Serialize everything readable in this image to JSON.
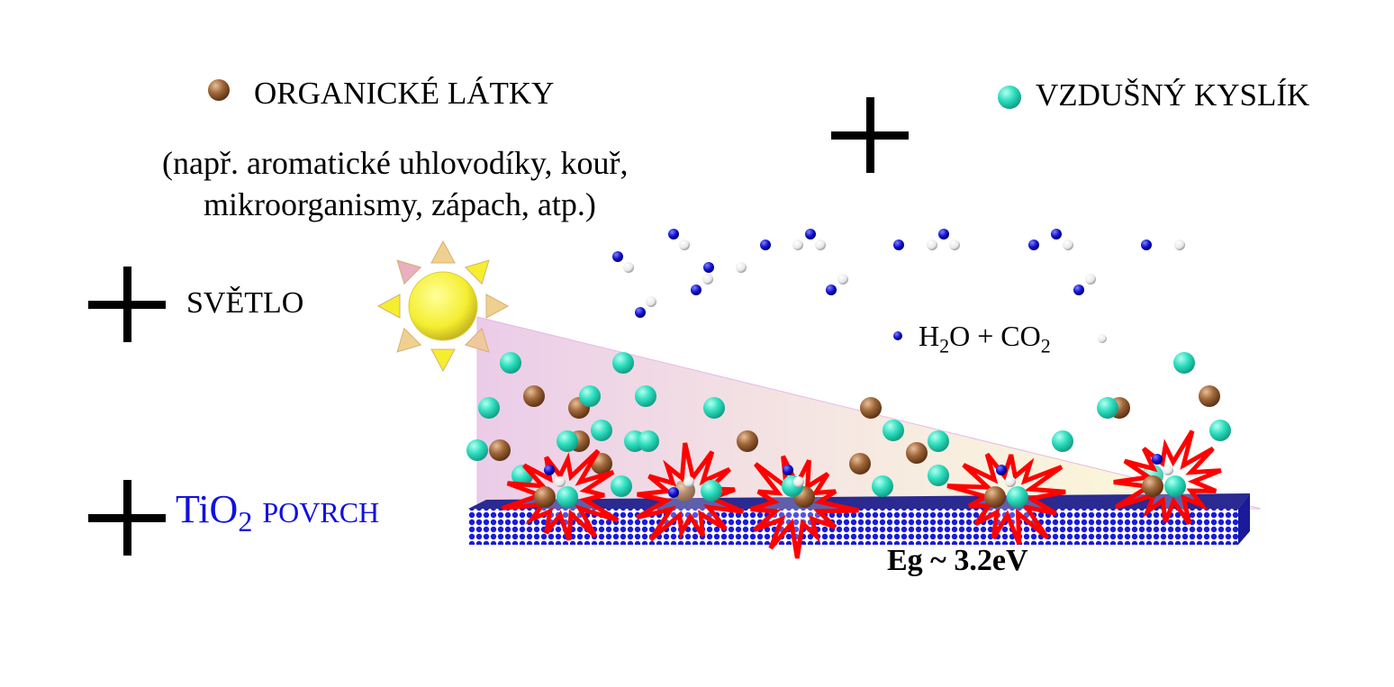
{
  "legend": {
    "organic_label": "ORGANICKÉ LÁTKY",
    "organic_examples_line1": "(např. aromatické uhlovodíky, kouř,",
    "organic_examples_line2": "mikroorganismy, zápach, atp.)",
    "oxygen_label": "VZDUŠNÝ KYSLÍK",
    "light_label": "SVĚTLO",
    "surface_label_main": "TiO",
    "surface_label_sub": "2",
    "surface_label_rest": "POVRCH"
  },
  "products": {
    "h": "H",
    "h_sub": "2",
    "o_plus": "O + CO",
    "co_sub": "2"
  },
  "band_gap": "Eg ~ 3.2eV",
  "colors": {
    "organic": "#9a5a2a",
    "oxygen": "#2fe0c0",
    "hydrogen_blue": "#1010d0",
    "surface_blue": "#1a1adc",
    "surface_top": "#2a2a90",
    "burst": "#ff0000",
    "tio2_text": "#1010e0"
  },
  "icons": [
    "sun-icon",
    "plus-icon",
    "starburst-icon"
  ]
}
